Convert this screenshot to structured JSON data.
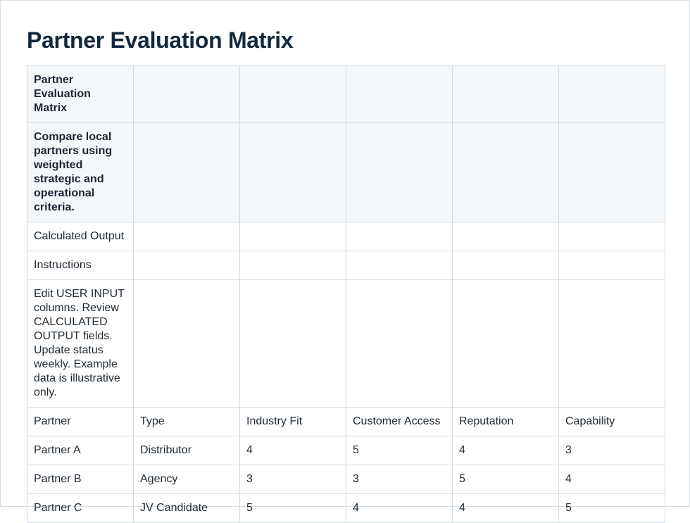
{
  "page": {
    "title": "Partner Evaluation Matrix"
  },
  "table": {
    "banner_rows": [
      [
        "Partner Evaluation Matrix",
        "",
        "",
        "",
        "",
        ""
      ],
      [
        "Compare local partners using weighted strategic and operational criteria.",
        "",
        "",
        "",
        "",
        ""
      ]
    ],
    "info_rows": [
      [
        "Calculated Output",
        "",
        "",
        "",
        "",
        ""
      ],
      [
        "Instructions",
        "",
        "",
        "",
        "",
        ""
      ],
      [
        "Edit USER INPUT columns. Review CALCULATED OUTPUT fields. Update status weekly. Example data is illustrative only.",
        "",
        "",
        "",
        "",
        ""
      ]
    ],
    "header": [
      "Partner",
      "Type",
      "Industry Fit",
      "Customer Access",
      "Reputation",
      "Capability"
    ],
    "rows": [
      [
        "Partner A",
        "Distributor",
        "4",
        "5",
        "4",
        "3"
      ],
      [
        "Partner B",
        "Agency",
        "3",
        "3",
        "5",
        "4"
      ],
      [
        "Partner C",
        "JV Candidate",
        "5",
        "4",
        "4",
        "5"
      ]
    ]
  }
}
